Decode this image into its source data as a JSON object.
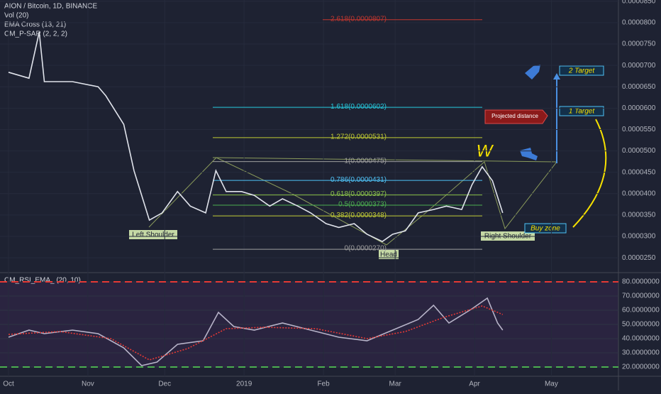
{
  "chart_data": [
    {
      "type": "line",
      "title": "AION / Bitcoin, 1D, BINANCE",
      "indicators": [
        "Vol (20)",
        "EMA Cross (13, 21)",
        "CM_P-SAR (2, 2, 2)"
      ],
      "xlim": [
        -3.32,
        238.2
      ],
      "xticks": [
        {
          "value": 0,
          "label": "Oct"
        },
        {
          "value": 31,
          "label": "Nov"
        },
        {
          "value": 61,
          "label": "Dec"
        },
        {
          "value": 92,
          "label": "2019"
        },
        {
          "value": 123,
          "label": "Feb"
        },
        {
          "value": 151,
          "label": "Mar"
        },
        {
          "value": 182,
          "label": "Apr"
        },
        {
          "value": 212,
          "label": "May"
        }
      ],
      "ylim": [
        2.17e-05,
        8.53e-05
      ],
      "yticks": [
        {
          "value": 8.5e-05,
          "label": "0.0000850"
        },
        {
          "value": 8e-05,
          "label": "0.0000800"
        },
        {
          "value": 7.5e-05,
          "label": "0.0000750"
        },
        {
          "value": 7e-05,
          "label": "0.0000700"
        },
        {
          "value": 6.5e-05,
          "label": "0.0000650"
        },
        {
          "value": 6e-05,
          "label": "0.0000600"
        },
        {
          "value": 5.5e-05,
          "label": "0.0000550"
        },
        {
          "value": 5e-05,
          "label": "0.0000500"
        },
        {
          "value": 4.5e-05,
          "label": "0.0000450"
        },
        {
          "value": 4e-05,
          "label": "0.0000400"
        },
        {
          "value": 3.5e-05,
          "label": "0.0000350"
        },
        {
          "value": 3e-05,
          "label": "0.0000300"
        },
        {
          "value": 2.5e-05,
          "label": "0.0000250"
        }
      ],
      "series": [
        {
          "color": "#e0e3eb",
          "x": [
            0,
            8,
            12,
            14,
            25,
            35,
            38,
            45,
            49,
            55,
            60,
            66,
            71,
            77,
            81,
            85,
            91,
            96,
            102,
            107,
            113,
            118,
            124,
            129,
            135,
            140,
            146,
            150,
            155,
            160,
            166,
            171,
            177,
            181,
            185,
            189,
            193
          ],
          "values": [
            6.84e-05,
            6.7e-05,
            7.78e-05,
            6.62e-05,
            6.62e-05,
            6.5e-05,
            6.29e-05,
            5.62e-05,
            4.54e-05,
            3.38e-05,
            3.55e-05,
            4.05e-05,
            3.71e-05,
            3.55e-05,
            4.54e-05,
            4.05e-05,
            4.05e-05,
            3.96e-05,
            3.71e-05,
            3.88e-05,
            3.71e-05,
            3.55e-05,
            3.3e-05,
            3.21e-05,
            3.3e-05,
            3.05e-05,
            2.88e-05,
            3.05e-05,
            3.13e-05,
            3.55e-05,
            3.63e-05,
            3.71e-05,
            3.63e-05,
            4.21e-05,
            4.63e-05,
            4.3e-05,
            3.55e-05
          ]
        }
      ],
      "fib_levels": [
        {
          "label": "2.618(0.0000807)",
          "value": 8.07e-05,
          "color": "#c2372f"
        },
        {
          "label": "1.618(0.0000602)",
          "value": 6.02e-05,
          "color": "#26c6da"
        },
        {
          "label": "1.272(0.0000531)",
          "value": 5.31e-05,
          "color": "#c0ca33"
        },
        {
          "label": "1(0.0000475)",
          "value": 4.75e-05,
          "color": "#9e9e9e"
        },
        {
          "label": "0.786(0.0000431)",
          "value": 4.31e-05,
          "color": "#4fc3f7"
        },
        {
          "label": "0.618(0.0000397)",
          "value": 3.97e-05,
          "color": "#8bc34a"
        },
        {
          "label": "0.5(0.0000373)",
          "value": 3.73e-05,
          "color": "#4caf50"
        },
        {
          "label": "0.382(0.0000348)",
          "value": 3.48e-05,
          "color": "#c0ca33"
        },
        {
          "label": "0(0.0000270)",
          "value": 2.7e-05,
          "color": "#9e9e9e"
        }
      ],
      "annotations": [
        "Left Shoulder",
        "Head",
        "Right Shoulder",
        "Buy zone",
        "1 Target",
        "2 Target",
        "Projected distance",
        "W"
      ]
    },
    {
      "type": "line",
      "title": "CM_RSI_EMA_ (20, 10)",
      "ylim": [
        13.5,
        86
      ],
      "yticks": [
        {
          "value": 80,
          "label": "80.0000000"
        },
        {
          "value": 70,
          "label": "70.0000000"
        },
        {
          "value": 60,
          "label": "60.0000000"
        },
        {
          "value": 50,
          "label": "50.0000000"
        },
        {
          "value": 40,
          "label": "40.0000000"
        },
        {
          "value": 30,
          "label": "30.0000000"
        },
        {
          "value": 20,
          "label": "20.0000000"
        }
      ],
      "series": [
        {
          "color": "#b7b3c8",
          "x": [
            0,
            8,
            14,
            25,
            35,
            45,
            52,
            58,
            66,
            76,
            82,
            88,
            96,
            107,
            118,
            129,
            140,
            150,
            160,
            166,
            172,
            181,
            187,
            191,
            193
          ],
          "values": [
            41,
            46,
            43.5,
            46,
            43.5,
            33.5,
            21,
            23.5,
            36,
            38.5,
            58.5,
            48.5,
            46,
            51,
            46,
            41,
            38.5,
            46,
            53.5,
            63.5,
            51,
            61,
            68.5,
            51,
            46
          ]
        },
        {
          "color": "#e53935",
          "x": [
            0,
            20,
            40,
            55,
            70,
            85,
            100,
            120,
            140,
            155,
            170,
            185,
            193
          ],
          "values": [
            43,
            45,
            40,
            25,
            33,
            47,
            48,
            47,
            40,
            45,
            55,
            63,
            57
          ]
        }
      ]
    }
  ]
}
